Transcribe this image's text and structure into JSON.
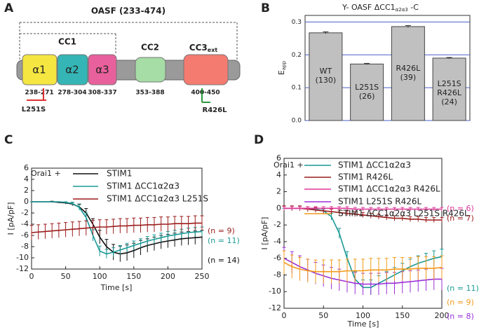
{
  "diagram": {
    "panel_label": "A",
    "title": "OASF (233-474)",
    "cc1_label": "CC1",
    "domains": [
      {
        "label": "α1",
        "range": "238-271"
      },
      {
        "label": "α2",
        "range": "278-304"
      },
      {
        "label": "α3",
        "range": "308-337"
      },
      {
        "label": "CC2",
        "range": "353-388"
      },
      {
        "label": "CC3",
        "label_subscript": "ext",
        "range": "400-450"
      }
    ],
    "mutations": [
      "L251S",
      "R426L"
    ]
  },
  "chart_data": [
    {
      "type": "bar",
      "panel_label": "B",
      "title": "Y- OASF ΔCC1",
      "title_subscript": "α2α3",
      "title_suffix": " -C",
      "ylabel": "E",
      "ylabel_subscript": "app",
      "categories": [
        "WT",
        "L251S",
        "R426L",
        "L251S R426L"
      ],
      "bar_notes": [
        "(130)",
        "(26)",
        "(39)",
        "(24)"
      ],
      "values": [
        0.267,
        0.172,
        0.286,
        0.19
      ],
      "errors": [
        0.003,
        0.002,
        0.003,
        0.002
      ],
      "color": "#c0c0c0",
      "ylim": [
        0,
        0.32
      ],
      "yticks": [
        {
          "value": 0,
          "label": "0.0"
        },
        0.1,
        0.2,
        0.3
      ],
      "grid": true,
      "grid_color": "#4a5fc8"
    },
    {
      "type": "line",
      "panel_label": "C",
      "xlabel": "Time [s]",
      "ylabel": "I [pA/pF]",
      "legend_title": "Orai1 +",
      "x": [
        0,
        10,
        20,
        30,
        40,
        50,
        60,
        70,
        80,
        90,
        100,
        110,
        120,
        130,
        140,
        150,
        160,
        170,
        180,
        190,
        200,
        210,
        220,
        230,
        240,
        250
      ],
      "xlim": [
        0,
        250
      ],
      "xticks": [
        0,
        50,
        100,
        150,
        200,
        250
      ],
      "ylim": [
        -12,
        6
      ],
      "yticks": [
        -12,
        -10,
        -8,
        -6,
        -4,
        -2,
        0,
        2,
        4,
        6
      ],
      "series": [
        {
          "name": "STIM1",
          "color": "#111111",
          "n_label": "(n = 14)",
          "values": [
            0,
            0,
            0,
            0,
            -0.1,
            -0.2,
            -0.4,
            -0.9,
            -2,
            -4,
            -6.3,
            -8,
            -9,
            -9.3,
            -9.1,
            -8.7,
            -8.2,
            -7.8,
            -7.5,
            -7.2,
            -7,
            -6.8,
            -6.6,
            -6.5,
            -6.4,
            -6.3
          ],
          "errors": [
            0,
            0,
            0,
            0.1,
            0.1,
            0.2,
            0.3,
            0.5,
            0.8,
            1,
            1.2,
            1.3,
            1.4,
            1.4,
            1.4,
            1.3,
            1.3,
            1.2,
            1.2,
            1.2,
            1.2,
            1.2,
            1.2,
            1.2,
            1.2,
            1.2
          ]
        },
        {
          "name": "STIM1 ΔCC1α2α3",
          "color": "#1a9a96",
          "n_label": "(n = 11)",
          "values": [
            0,
            0,
            0,
            0,
            0,
            -0.1,
            -0.3,
            -1,
            -2.8,
            -6,
            -8.8,
            -9.3,
            -9,
            -8.6,
            -8.2,
            -7.8,
            -7.4,
            -7,
            -6.7,
            -6.4,
            -6.1,
            -5.9,
            -5.7,
            -5.5,
            -5.4,
            -5.3
          ],
          "errors": [
            0,
            0,
            0,
            0,
            0,
            0.1,
            0.2,
            0.5,
            0.8,
            1,
            0.9,
            0.8,
            0.8,
            0.8,
            0.8,
            0.8,
            0.8,
            0.8,
            0.8,
            0.8,
            0.8,
            0.8,
            0.8,
            0.8,
            0.8,
            0.8
          ]
        },
        {
          "name": "STIM1 ΔCC1α2α3 L251S",
          "color": "#9b1c1c",
          "n_label": "(n = 9)",
          "values": [
            -5.5,
            -5.4,
            -5.3,
            -5.2,
            -5.1,
            -5,
            -4.9,
            -4.8,
            -4.7,
            -4.6,
            -4.5,
            -4.5,
            -4.4,
            -4.3,
            -4.3,
            -4.2,
            -4.2,
            -4.1,
            -4.1,
            -4,
            -4,
            -3.9,
            -3.9,
            -3.9,
            -3.8,
            -3.8
          ],
          "errors": [
            1.3,
            1.3,
            1.3,
            1.3,
            1.3,
            1.3,
            1.3,
            1.3,
            1.3,
            1.3,
            1.3,
            1.3,
            1.3,
            1.3,
            1.3,
            1.3,
            1.3,
            1.3,
            1.3,
            1.3,
            1.3,
            1.3,
            1.3,
            1.3,
            1.3,
            1.3
          ]
        }
      ]
    },
    {
      "type": "line",
      "panel_label": "D",
      "xlabel": "Time [s]",
      "ylabel": "I [pA/pF]",
      "legend_title": "Orai1 +",
      "x": [
        0,
        10,
        20,
        30,
        40,
        50,
        60,
        70,
        80,
        90,
        100,
        110,
        120,
        130,
        140,
        150,
        160,
        170,
        180,
        190,
        200
      ],
      "xlim": [
        0,
        200
      ],
      "xticks": [
        0,
        50,
        100,
        150,
        200
      ],
      "ylim": [
        -12,
        6
      ],
      "yticks": [
        -12,
        -10,
        -8,
        -6,
        -4,
        -2,
        0,
        2,
        4,
        6
      ],
      "series": [
        {
          "name": "STIM1 ΔCC1α2α3",
          "color": "#1a9a96",
          "n_label": "(n = 11)",
          "values": [
            0,
            0,
            0,
            0,
            -0.1,
            -0.3,
            -1,
            -3,
            -6,
            -8.5,
            -9.5,
            -9.5,
            -9,
            -8.5,
            -8,
            -7.5,
            -7,
            -6.6,
            -6.3,
            -6,
            -5.8
          ],
          "errors": [
            0,
            0,
            0,
            0,
            0.1,
            0.2,
            0.4,
            0.6,
            0.8,
            0.9,
            0.9,
            0.9,
            0.9,
            0.9,
            0.9,
            0.9,
            0.9,
            0.9,
            0.9,
            0.9,
            0.9
          ]
        },
        {
          "name": "STIM1 R426L",
          "color": "#9b1c1c",
          "n_label": "(n = 7)",
          "values": [
            0,
            0,
            0,
            -0.1,
            -0.2,
            -0.3,
            -0.4,
            -0.5,
            -0.6,
            -0.7,
            -0.8,
            -0.9,
            -1,
            -1.1,
            -1.2,
            -1.2,
            -1.3,
            -1.3,
            -1.4,
            -1.4,
            -1.4
          ],
          "errors": [
            0.3,
            0.3,
            0.3,
            0.3,
            0.3,
            0.3,
            0.3,
            0.3,
            0.3,
            0.3,
            0.3,
            0.3,
            0.3,
            0.3,
            0.3,
            0.3,
            0.3,
            0.3,
            0.3,
            0.3,
            0.3
          ]
        },
        {
          "name": "STIM1 ΔCC1α2α3 R426L",
          "color": "#e0379a",
          "n_label": "(n = 6)",
          "values": [
            0,
            0,
            0,
            0,
            0,
            0,
            0,
            0,
            0,
            -0.1,
            -0.1,
            -0.1,
            -0.1,
            -0.1,
            -0.1,
            -0.1,
            -0.1,
            -0.1,
            -0.1,
            -0.1,
            -0.1
          ],
          "errors": [
            0.2,
            0.2,
            0.2,
            0.2,
            0.2,
            0.2,
            0.2,
            0.2,
            0.2,
            0.2,
            0.2,
            0.2,
            0.2,
            0.2,
            0.2,
            0.2,
            0.2,
            0.2,
            0.2,
            0.2,
            0.2
          ]
        },
        {
          "name": "STIM1 L251S R426L",
          "color": "#9b30d9",
          "n_label": "(n = 8)",
          "values": [
            -6,
            -6.5,
            -7,
            -7.4,
            -7.8,
            -8.1,
            -8.4,
            -8.6,
            -8.8,
            -9,
            -9.1,
            -9.1,
            -9.1,
            -9,
            -9,
            -8.9,
            -8.8,
            -8.7,
            -8.6,
            -8.5,
            -8.5
          ],
          "errors": [
            1.3,
            1.3,
            1.3,
            1.3,
            1.3,
            1.3,
            1.3,
            1.3,
            1.3,
            1.3,
            1.3,
            1.3,
            1.3,
            1.3,
            1.3,
            1.3,
            1.3,
            1.3,
            1.3,
            1.3,
            1.3
          ]
        },
        {
          "name": "STIM1 ΔCC1α2α3 L251S R426L",
          "color": "#f39a1c",
          "n_label": "(n = 9)",
          "values": [
            -6.5,
            -7,
            -7.3,
            -7.5,
            -7.6,
            -7.6,
            -7.6,
            -7.6,
            -7.5,
            -7.5,
            -7.5,
            -7.4,
            -7.4,
            -7.4,
            -7.3,
            -7.3,
            -7.3,
            -7.2,
            -7.2,
            -7.2,
            -7.1
          ],
          "errors": [
            1.4,
            1.4,
            1.4,
            1.4,
            1.4,
            1.4,
            1.4,
            1.4,
            1.4,
            1.4,
            1.4,
            1.4,
            1.4,
            1.4,
            1.4,
            1.4,
            1.4,
            1.4,
            1.4,
            1.4,
            1.4
          ]
        }
      ]
    }
  ]
}
